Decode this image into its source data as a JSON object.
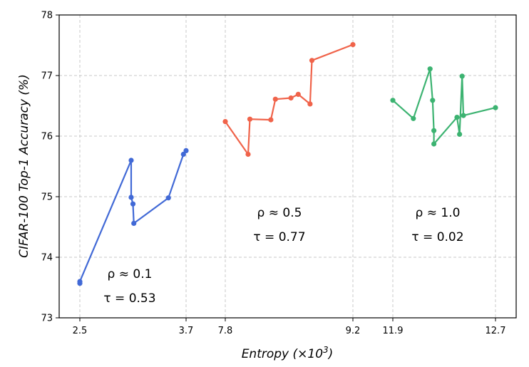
{
  "chart_data": {
    "type": "line",
    "xlabel": "Entropy (×10³)",
    "ylabel": "CIFAR-100 Top-1 Accuracy (%)",
    "ylim": [
      73,
      78
    ],
    "yticks": [
      73,
      74,
      75,
      76,
      77,
      78
    ],
    "grid": true,
    "x_segments": [
      {
        "ticks": [
          2.5,
          3.7
        ],
        "tick_labels": [
          "2.5",
          "3.7"
        ],
        "xlim": [
          2.5,
          3.7
        ]
      },
      {
        "ticks": [
          7.8,
          9.2
        ],
        "tick_labels": [
          "7.8",
          "9.2"
        ],
        "xlim": [
          7.8,
          9.2
        ]
      },
      {
        "ticks": [
          11.9,
          12.7
        ],
        "tick_labels": [
          "11.9",
          "12.7"
        ],
        "xlim": [
          11.9,
          12.7
        ]
      }
    ],
    "series": [
      {
        "color": "#4169d6",
        "segment": 0,
        "x": [
          2.5,
          2.5,
          3.08,
          3.08,
          3.1,
          3.11,
          3.5,
          3.67,
          3.7
        ],
        "y": [
          73.57,
          73.6,
          75.6,
          74.99,
          74.88,
          74.56,
          74.98,
          75.7,
          75.76
        ]
      },
      {
        "color": "#f0634a",
        "segment": 1,
        "x": [
          7.8,
          8.05,
          8.07,
          8.3,
          8.35,
          8.52,
          8.6,
          8.73,
          8.75,
          9.2
        ],
        "y": [
          76.24,
          75.7,
          76.28,
          76.27,
          76.61,
          76.63,
          76.69,
          76.53,
          77.25,
          77.51
        ]
      },
      {
        "color": "#3cb371",
        "segment": 2,
        "x": [
          11.9,
          12.06,
          12.19,
          12.21,
          12.22,
          12.22,
          12.4,
          12.42,
          12.44,
          12.45,
          12.7
        ],
        "y": [
          76.59,
          76.29,
          77.11,
          76.59,
          76.09,
          75.87,
          76.31,
          76.03,
          76.99,
          76.34,
          76.47
        ]
      }
    ],
    "annotations": [
      {
        "segment": 0,
        "rho": "ρ ≈ 0.1",
        "tau": "τ = 0.53"
      },
      {
        "segment": 1,
        "rho": "ρ ≈ 0.5",
        "tau": "τ = 0.77"
      },
      {
        "segment": 2,
        "rho": "ρ ≈ 1.0",
        "tau": "τ = 0.02"
      }
    ]
  }
}
